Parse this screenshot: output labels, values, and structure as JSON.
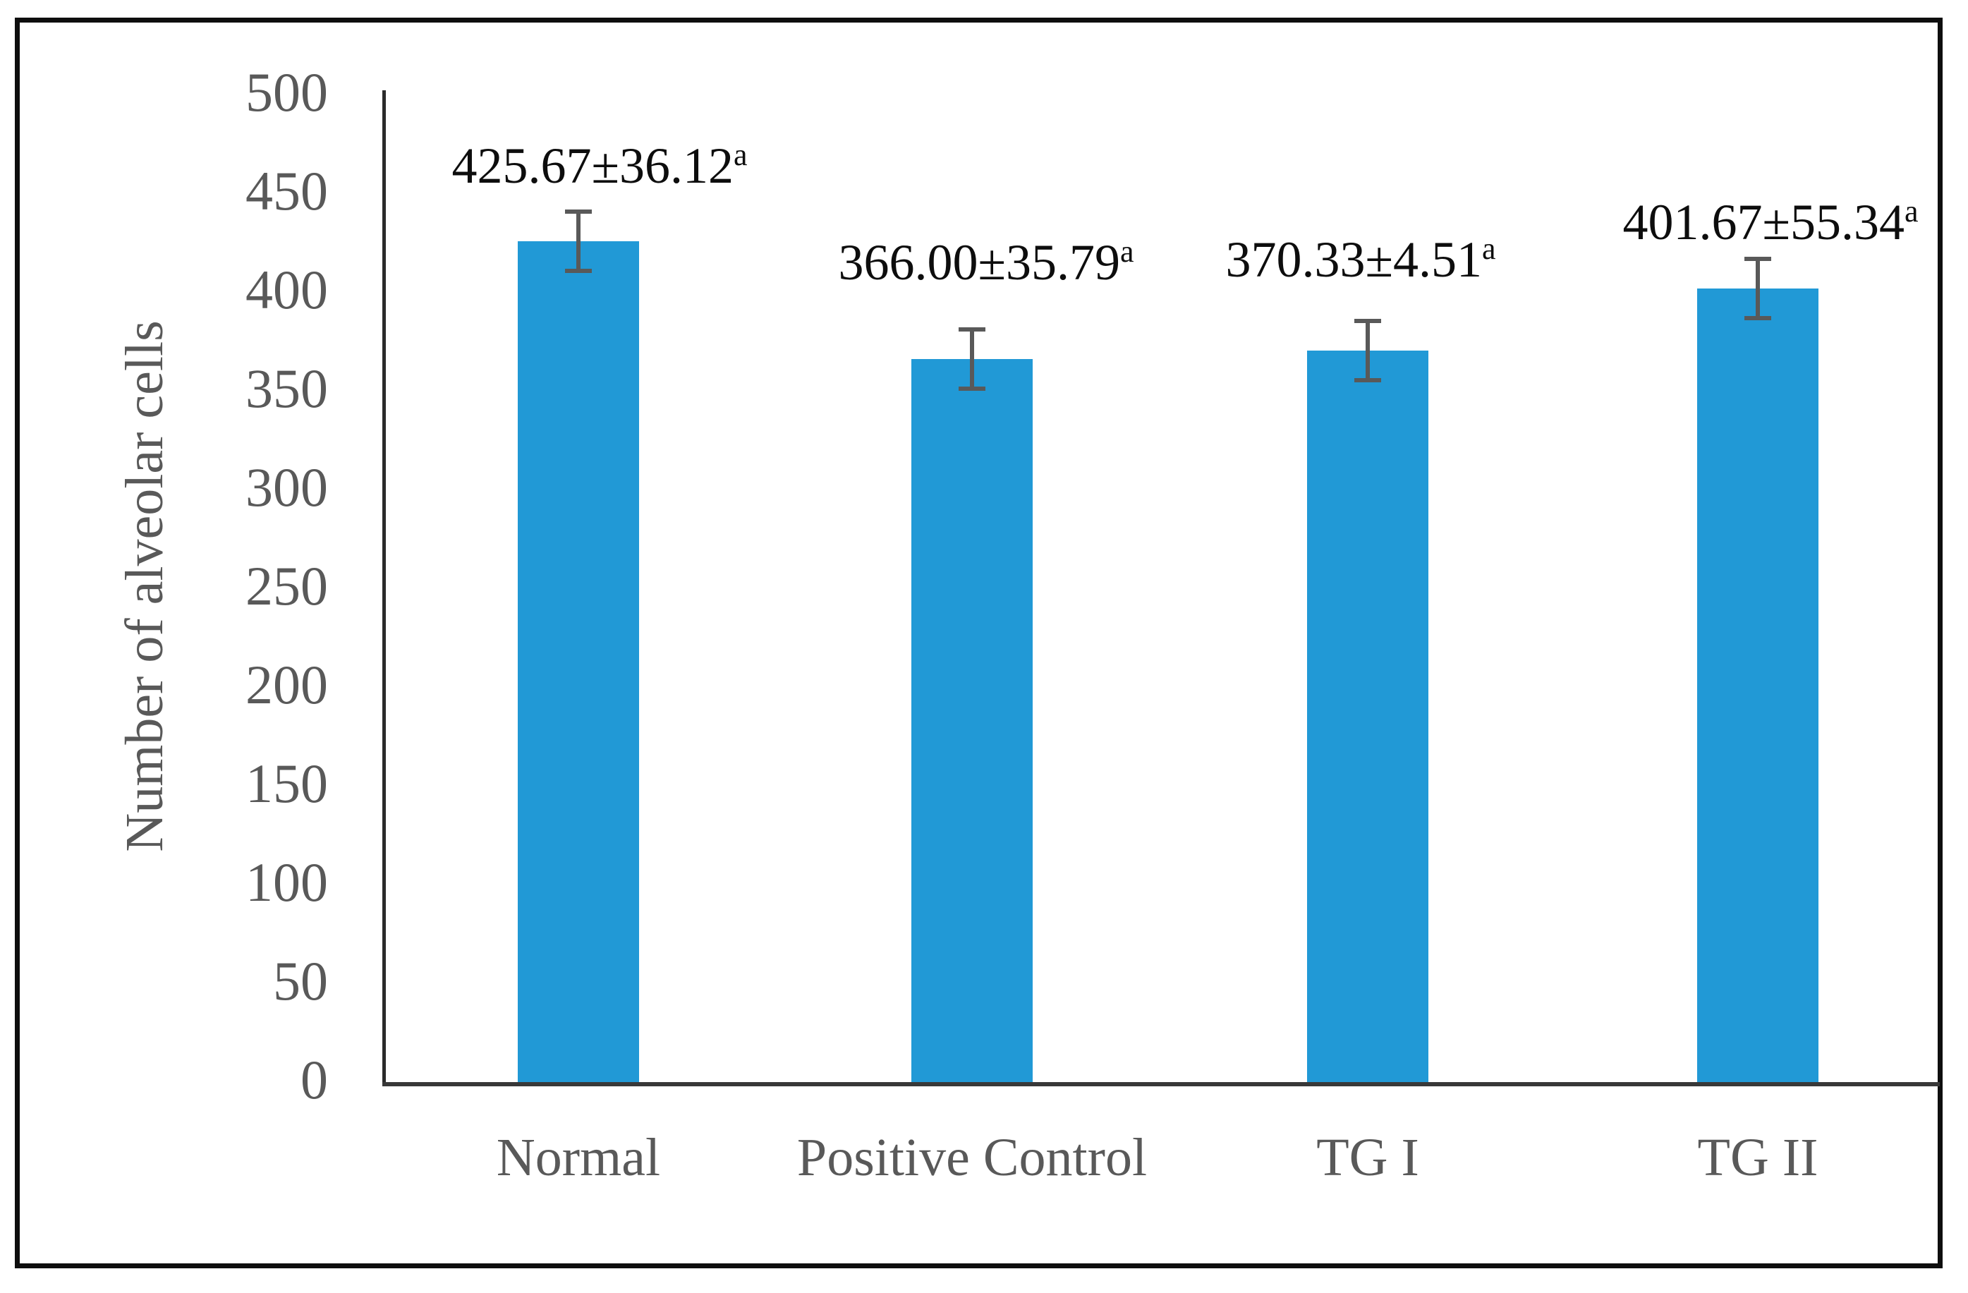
{
  "figure": {
    "background": "#ffffff",
    "border_color": "#0e0e0e"
  },
  "chart_data": {
    "type": "bar",
    "title": "",
    "xlabel": "",
    "ylabel": "Number of alveolar cells",
    "categories": [
      "Normal",
      "Positive Control",
      "TG I",
      "TG II"
    ],
    "values": [
      425.67,
      366.0,
      370.33,
      401.67
    ],
    "errors_sd": [
      36.12,
      35.79,
      4.51,
      55.34
    ],
    "error_whisker_value_shown": 15,
    "data_labels": [
      {
        "text": "425.67±36.12",
        "superscript": "a"
      },
      {
        "text": "366.00±35.79",
        "superscript": "a"
      },
      {
        "text": "370.33±4.51",
        "superscript": "a"
      },
      {
        "text": "401.67±55.34",
        "superscript": "a"
      }
    ],
    "ylim": [
      0,
      500
    ],
    "ytick_step": 50,
    "yticks": [
      "500",
      "450",
      "400",
      "350",
      "300",
      "250",
      "200",
      "150",
      "100",
      "50",
      "0"
    ],
    "grid": false,
    "legend": null,
    "bar_color": "#2199d6",
    "error_bar_color": "#595959",
    "axis_text_color": "#595959",
    "data_label_color": "#0d0d0d"
  }
}
